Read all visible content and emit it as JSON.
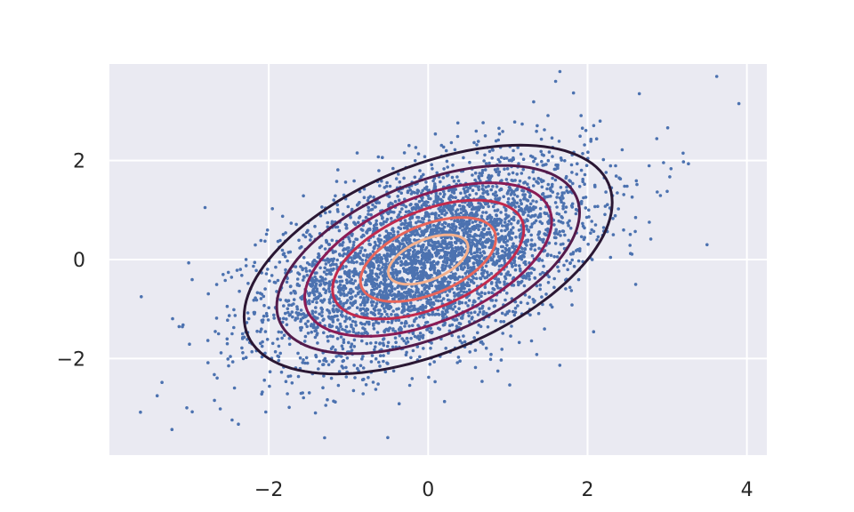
{
  "chart_data": {
    "type": "scatter",
    "title": "",
    "xlabel": "",
    "ylabel": "",
    "xlim": [
      -4.0,
      4.25
    ],
    "ylim": [
      -3.95,
      3.95
    ],
    "grid": true,
    "legend": "none",
    "x_ticks": [
      {
        "value": -2,
        "label": "−2"
      },
      {
        "value": 0,
        "label": "0"
      },
      {
        "value": 2,
        "label": "2"
      },
      {
        "value": 4,
        "label": "4"
      }
    ],
    "y_ticks": [
      {
        "value": -2,
        "label": "−2"
      },
      {
        "value": 0,
        "label": "0"
      },
      {
        "value": 2,
        "label": "2"
      }
    ],
    "scatter": {
      "n_points": 4200,
      "mean": [
        0,
        0
      ],
      "std": [
        1,
        1
      ],
      "correlation": 0.5,
      "color": "#4c72b0",
      "highlighted_points": [
        {
          "x": 3.9,
          "y": 3.15
        },
        {
          "x": 2.65,
          "y": 3.35
        },
        {
          "x": 1.6,
          "y": 3.6
        },
        {
          "x": -3.6,
          "y": -0.75
        },
        {
          "x": -2.8,
          "y": 1.05
        },
        {
          "x": -1.3,
          "y": -3.6
        },
        {
          "x": 3.5,
          "y": 0.3
        },
        {
          "x": 3.2,
          "y": 2.15
        },
        {
          "x": -3.4,
          "y": -2.75
        }
      ]
    },
    "contours": {
      "center": [
        0,
        0
      ],
      "correlation": 0.5,
      "levels_mahalanobis": [
        2.31,
        1.9,
        1.55,
        1.2,
        0.85,
        0.5
      ],
      "colors": [
        "#2a1733",
        "#541b4b",
        "#8a1b55",
        "#c22a4d",
        "#e8645a",
        "#f4b08d"
      ]
    },
    "style": {
      "plot_background": "#eaeaf2",
      "grid_color": "#ffffff"
    }
  }
}
